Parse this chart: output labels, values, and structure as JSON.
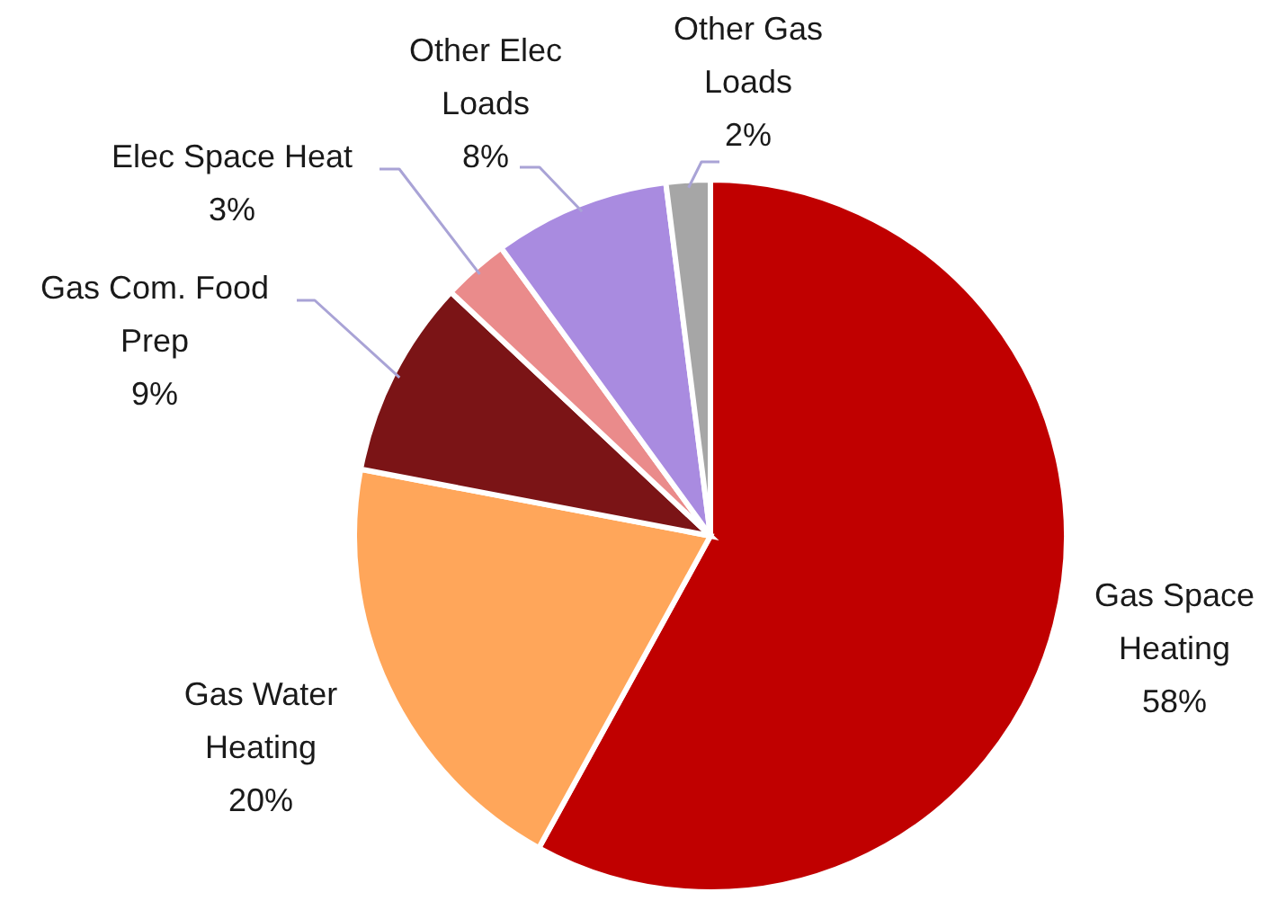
{
  "chart_data": {
    "type": "pie",
    "categories": [
      "Gas Space Heating",
      "Gas Water Heating",
      "Gas Com. Food Prep",
      "Elec Space Heat",
      "Other Elec Loads",
      "Other Gas Loads"
    ],
    "values": [
      58,
      20,
      9,
      3,
      8,
      2
    ],
    "colors": [
      "#c00000",
      "#ffa65a",
      "#7b1416",
      "#ea8b8b",
      "#a98be0",
      "#a6a6a6"
    ],
    "value_labels": [
      "58%",
      "20%",
      "9%",
      "3%",
      "8%",
      "2%"
    ]
  }
}
